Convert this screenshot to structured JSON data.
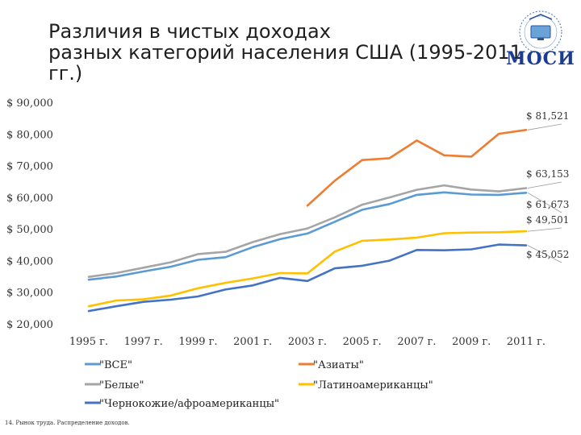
{
  "slide": {
    "title_lines": [
      "Различия в чистых доходах",
      "разных категорий населения США (1995-2011",
      "гг.)"
    ],
    "logo_text": "МОСИ",
    "footer": "14. Рынок труда. Распределение доходов."
  },
  "chart_data": {
    "type": "line",
    "title": "Различия в чистых доходах разных категорий населения США (1995-2011 гг.)",
    "x": [
      1995,
      1996,
      1997,
      1998,
      1999,
      2000,
      2001,
      2002,
      2003,
      2004,
      2005,
      2006,
      2007,
      2008,
      2009,
      2010,
      2011
    ],
    "x_tick_labels": [
      "1995 г.",
      "1997 г.",
      "1999 г.",
      "2001 г.",
      "2003 г.",
      "2005 г.",
      "2007 г.",
      "2009 г.",
      "2011 г."
    ],
    "x_tick_years": [
      1995,
      1997,
      1999,
      2001,
      2003,
      2005,
      2007,
      2009,
      2011
    ],
    "y_tick_labels": [
      "$ 90,000",
      "$ 80,000",
      "$ 70,000",
      "$ 60,000",
      "$ 50,000",
      "$ 40,000",
      "$ 30,000",
      "$ 20,000"
    ],
    "y_tick_values": [
      90000,
      80000,
      70000,
      60000,
      50000,
      40000,
      30000,
      20000
    ],
    "ylim": [
      20000,
      90000
    ],
    "grid": false,
    "legend_position": "bottom",
    "series": [
      {
        "name": "\"ВСЕ\"",
        "color": "#5b9bd5",
        "values": [
          34200,
          35200,
          36800,
          38300,
          40500,
          41300,
          44500,
          47000,
          48800,
          52500,
          56300,
          58100,
          61000,
          61800,
          61100,
          61000,
          61673
        ]
      },
      {
        "name": "\"Азиаты\"",
        "color": "#ed7d31",
        "values": [
          null,
          null,
          null,
          null,
          null,
          null,
          null,
          null,
          57600,
          65500,
          72000,
          72600,
          78200,
          73500,
          73100,
          80300,
          81521
        ]
      },
      {
        "name": "\"Белые\"",
        "color": "#a5a5a5",
        "values": [
          35100,
          36300,
          38000,
          39700,
          42300,
          43000,
          46100,
          48600,
          50400,
          53900,
          57900,
          60200,
          62600,
          64000,
          62700,
          62100,
          63153
        ]
      },
      {
        "name": "\"Латиноамериканцы\"",
        "color": "#ffc000",
        "values": [
          25800,
          27600,
          28000,
          29200,
          31500,
          33200,
          34600,
          36300,
          36200,
          43100,
          46500,
          46900,
          47500,
          48900,
          49100,
          49200,
          49501
        ]
      },
      {
        "name": "\"Чернокожие/афроамериканцы\"",
        "color": "#4472c4",
        "values": [
          24300,
          25800,
          27200,
          27900,
          28900,
          31100,
          32400,
          34800,
          33800,
          37800,
          38600,
          40200,
          43600,
          43500,
          43800,
          45300,
          45052
        ]
      }
    ],
    "end_labels": [
      {
        "series": "\"Азиаты\"",
        "text": "$ 81,521",
        "value": 81521
      },
      {
        "series": "\"Белые\"",
        "text": "$ 63,153",
        "value": 63153
      },
      {
        "series": "\"ВСЕ\"",
        "text": "$ 61,673",
        "value": 61673
      },
      {
        "series": "\"Латиноамериканцы\"",
        "text": "$ 49,501",
        "value": 49501
      },
      {
        "series": "\"Чернокожие/афроамериканцы\"",
        "text": "$ 45,052",
        "value": 45052
      }
    ]
  }
}
